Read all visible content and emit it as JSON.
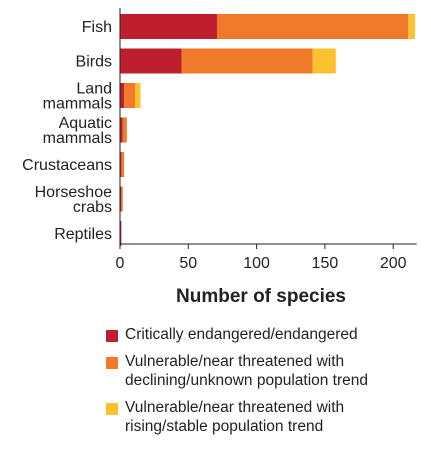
{
  "chart_data": {
    "type": "bar",
    "orientation": "horizontal",
    "stacked": true,
    "categories": [
      [
        "Fish"
      ],
      [
        "Birds"
      ],
      [
        "Land",
        "mammals"
      ],
      [
        "Aquatic",
        "mammals"
      ],
      [
        "Crustaceans"
      ],
      [
        "Horseshoe",
        "crabs"
      ],
      [
        "Reptiles"
      ]
    ],
    "series": [
      {
        "name": "Critically endangered/endangered",
        "color": "#be1e2d",
        "values": [
          71,
          45,
          3,
          2,
          1,
          1,
          1
        ]
      },
      {
        "name": "Vulnerable/near threatened with declining/unknown population trend",
        "legend_lines": [
          "Vulnerable/near threatened with",
          "declining/unknown population trend"
        ],
        "color": "#f07a2a",
        "values": [
          140,
          96,
          8,
          3,
          2,
          1,
          0
        ]
      },
      {
        "name": "Vulnerable/near threatened with rising/stable population trend",
        "legend_lines": [
          "Vulnerable/near threatened with",
          "rising/stable population trend"
        ],
        "color": "#fcc131",
        "values": [
          5,
          17,
          4,
          0,
          0,
          0,
          0
        ]
      }
    ],
    "x_ticks": [
      "0",
      "50",
      "100",
      "150",
      "200"
    ],
    "xlim": [
      0,
      215
    ],
    "xlabel": "Number of species",
    "ylabel": "",
    "grid": false,
    "legend_position": "bottom"
  }
}
